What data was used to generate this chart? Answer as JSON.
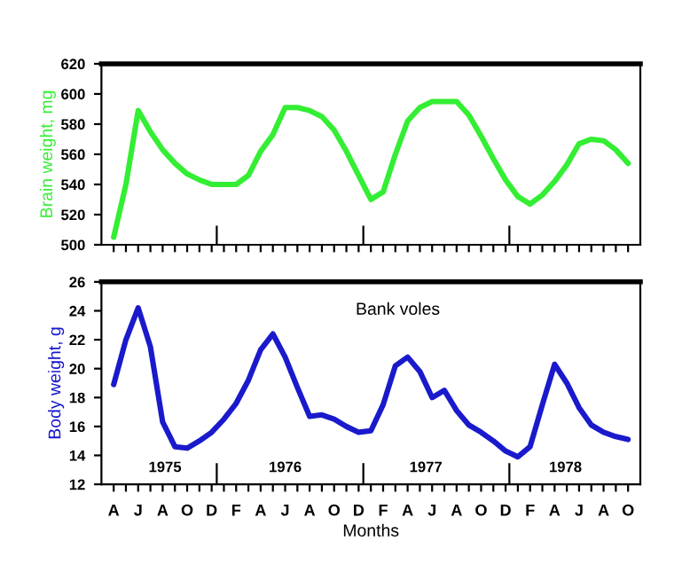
{
  "chart_data": [
    {
      "type": "line",
      "ylabel": "Brain weight, mg",
      "tick_labels": "y",
      "ylim": [
        500,
        620
      ],
      "yticks": [
        500,
        520,
        540,
        560,
        580,
        600,
        620
      ],
      "categories": [
        null,
        null,
        null,
        null,
        null,
        null,
        null,
        null,
        null,
        null,
        null,
        null,
        null,
        null,
        null,
        null,
        null,
        null,
        null,
        null,
        null,
        null,
        null,
        null,
        null,
        null,
        null,
        null,
        null,
        null,
        null,
        null,
        null,
        null,
        null,
        null,
        null,
        null,
        null,
        null,
        null,
        null,
        null
      ],
      "series": [
        {
          "color": "#33ee33",
          "values": [
            505,
            540,
            589,
            575,
            563,
            554,
            547,
            543,
            540,
            540,
            540,
            546,
            562,
            573,
            591,
            591,
            589,
            585,
            576,
            562,
            546,
            530,
            535,
            560,
            582,
            591,
            595,
            595,
            595,
            586,
            572,
            557,
            543,
            532,
            527,
            533,
            542,
            553,
            567,
            570,
            569,
            563,
            554
          ]
        }
      ]
    },
    {
      "type": "line",
      "xlabel": "Months",
      "ylabel": "Body weight, g",
      "ylim": [
        12,
        26
      ],
      "yticks": [
        12,
        14,
        16,
        18,
        20,
        22,
        24,
        26
      ],
      "categories": [
        "A",
        null,
        "J",
        null,
        "A",
        null,
        "O",
        null,
        "D",
        null,
        "F",
        null,
        "A",
        null,
        "J",
        null,
        "A",
        null,
        "O",
        null,
        "D",
        null,
        "F",
        null,
        "A",
        null,
        "J",
        null,
        "A",
        null,
        "O",
        null,
        "D",
        null,
        "F",
        null,
        "A",
        null,
        "J",
        null,
        "A",
        null,
        "O"
      ],
      "annotations": [
        "Bank voles",
        "1975",
        "1976",
        "1977",
        "1978"
      ],
      "series": [
        {
          "color": "#1a1acc",
          "values": [
            18.9,
            22.0,
            24.2,
            21.5,
            16.3,
            14.6,
            14.5,
            15.0,
            15.6,
            16.5,
            17.6,
            19.2,
            21.3,
            22.4,
            20.8,
            18.7,
            16.7,
            16.8,
            16.5,
            16.0,
            15.6,
            15.7,
            17.5,
            20.2,
            20.8,
            19.8,
            18.0,
            18.5,
            17.1,
            16.1,
            15.6,
            15.0,
            14.3,
            13.9,
            14.6,
            17.5,
            20.3,
            19.0,
            17.3,
            16.1,
            15.6,
            15.3,
            15.1
          ]
        }
      ]
    }
  ]
}
